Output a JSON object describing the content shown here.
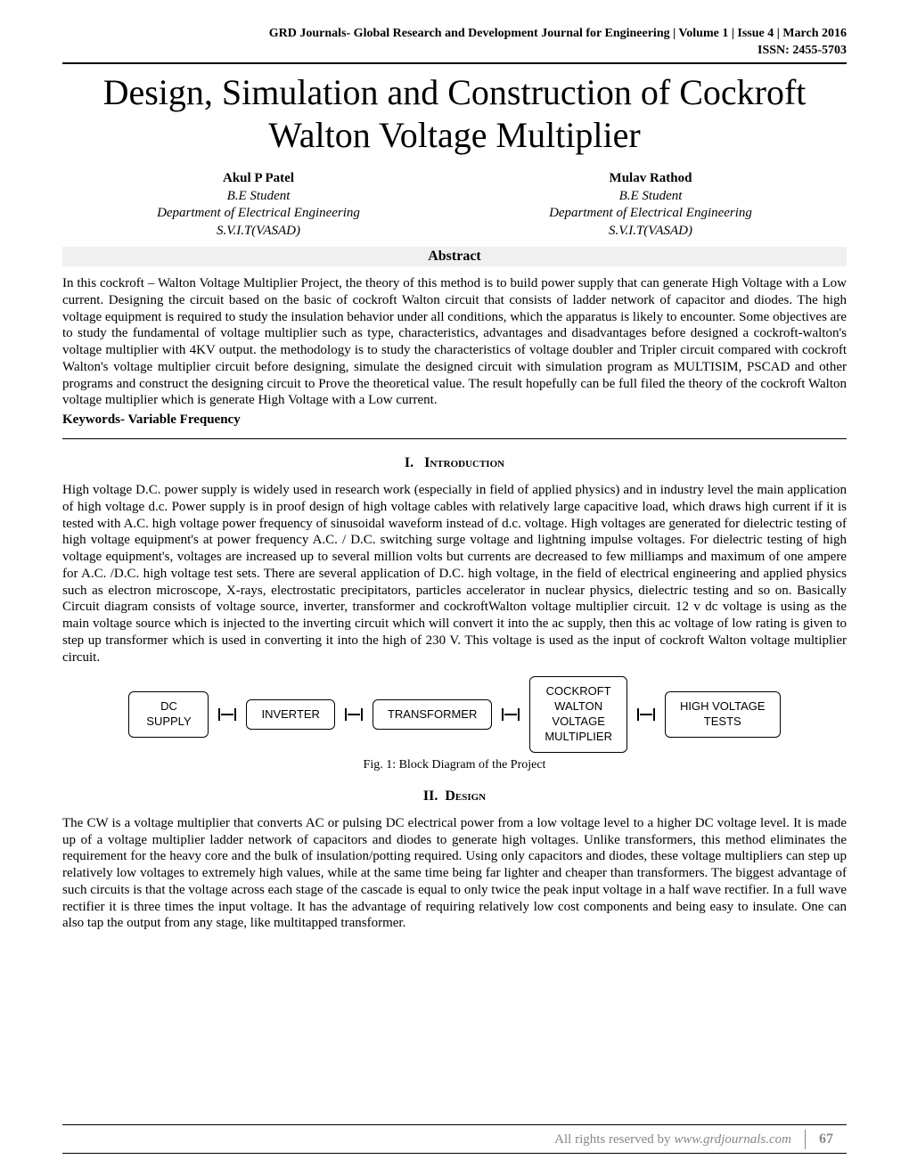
{
  "header": {
    "journal_info": "GRD Journals- Global Research and Development Journal for Engineering | Volume 1 | Issue 4 | March 2016",
    "issn": "ISSN: 2455-5703"
  },
  "title": "Design, Simulation and Construction of Cockroft Walton Voltage Multiplier",
  "authors": [
    {
      "name": "Akul P Patel",
      "role": "B.E Student",
      "department": "Department of Electrical Engineering",
      "institution": "S.V.I.T(VASAD)"
    },
    {
      "name": "Mulav Rathod",
      "role": "B.E Student",
      "department": "Department of Electrical Engineering",
      "institution": "S.V.I.T(VASAD)"
    }
  ],
  "abstract": {
    "heading": "Abstract",
    "text": "In this cockroft – Walton Voltage Multiplier Project, the theory of this method is to build power supply that can generate High Voltage with a Low current. Designing the circuit based on the basic of cockroft Walton circuit that consists of ladder network of capacitor and diodes. The high voltage equipment is required to study the insulation behavior under all conditions, which the apparatus is likely to encounter. Some objectives are to study the fundamental of voltage multiplier such as type, characteristics, advantages and disadvantages before designed a cockroft-walton's voltage multiplier with 4KV output. the methodology is to study the characteristics of voltage doubler and Tripler circuit compared with cockroft Walton's voltage multiplier circuit before designing, simulate the designed circuit with simulation program as MULTISIM, PSCAD and other programs and construct the designing circuit to Prove the theoretical value. The result hopefully can be full filed the theory of the cockroft Walton voltage multiplier which is generate High Voltage with a Low current.",
    "keywords_label": "Keywords- Variable Frequency"
  },
  "sections": {
    "introduction": {
      "number": "I.",
      "title": "Introduction",
      "text": "High voltage D.C. power supply is widely used in research work (especially in field of applied physics) and in industry level the main application of high voltage d.c. Power supply is in proof design of high voltage cables with relatively large capacitive load, which draws high current if it is tested with A.C. high voltage power frequency of sinusoidal waveform instead of d.c. voltage. High voltages are generated for dielectric testing of high voltage equipment's at power frequency A.C. / D.C. switching surge voltage and lightning impulse voltages. For dielectric testing of high voltage equipment's, voltages are increased up to several million volts but currents are decreased to few milliamps and maximum of one ampere for A.C. /D.C. high voltage test sets. There are several application of D.C. high voltage, in the field of electrical engineering and applied physics such as electron microscope, X-rays, electrostatic precipitators, particles accelerator in nuclear physics, dielectric testing and so on. Basically Circuit diagram consists of voltage source, inverter, transformer and cockroftWalton voltage multiplier circuit. 12 v dc voltage is using as the main voltage source which is injected to the inverting circuit which will convert it into the ac supply, then this ac voltage of low rating is given to step up transformer which is used in converting it into the high of 230 V. This voltage is used as the input of cockroft Walton voltage multiplier circuit."
    },
    "design": {
      "number": "II.",
      "title": "Design",
      "text": "The CW is a voltage multiplier that converts AC or pulsing DC electrical power from a low voltage level to a higher DC voltage level. It is made up of a voltage multiplier ladder network of capacitors and diodes to generate high voltages. Unlike transformers, this method eliminates the requirement for the heavy core and the bulk of insulation/potting required.  Using only capacitors and diodes, these voltage multipliers can step up relatively low voltages to extremely high values, while at the same time being far lighter and cheaper than transformers. The biggest advantage of such circuits is that the voltage across each stage of the cascade is equal to only twice the peak input voltage in a half wave rectifier.  In a full wave rectifier it is three times the input voltage. It has the advantage of requiring relatively low cost components and being easy to insulate. One can also tap the output from any stage, like multitapped transformer."
    }
  },
  "diagram": {
    "type": "flowchart",
    "blocks": [
      "DC\nSUPPLY",
      "INVERTER",
      "TRANSFORMER",
      "COCKROFT\nWALTON\nVOLTAGE\nMULTIPLIER",
      "HIGH VOLTAGE\nTESTS"
    ],
    "box_border_color": "#000000",
    "box_bg_color": "#ffffff",
    "box_border_radius": 6,
    "font_family": "Arial",
    "font_size": 13,
    "caption": "Fig. 1: Block Diagram of the Project"
  },
  "footer": {
    "rights_text": "All rights reserved by ",
    "url": "www.grdjournals.com",
    "page_number": "67"
  },
  "colors": {
    "text": "#000000",
    "background": "#ffffff",
    "abstract_bg": "#f0f0f0",
    "footer_text": "#888888"
  }
}
